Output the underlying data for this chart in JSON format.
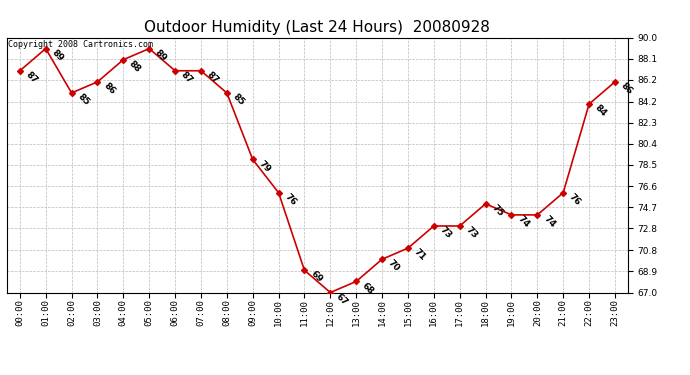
{
  "title": "Outdoor Humidity (Last 24 Hours)  20080928",
  "copyright": "Copyright 2008 Cartronics.com",
  "hours": [
    0,
    1,
    2,
    3,
    4,
    5,
    6,
    7,
    8,
    9,
    10,
    11,
    12,
    13,
    14,
    15,
    16,
    17,
    18,
    19,
    20,
    21,
    22,
    23
  ],
  "hour_labels": [
    "00:00",
    "01:00",
    "02:00",
    "03:00",
    "04:00",
    "05:00",
    "06:00",
    "07:00",
    "08:00",
    "09:00",
    "10:00",
    "11:00",
    "12:00",
    "13:00",
    "14:00",
    "15:00",
    "16:00",
    "17:00",
    "18:00",
    "19:00",
    "20:00",
    "21:00",
    "22:00",
    "23:00"
  ],
  "values": [
    87,
    89,
    85,
    86,
    88,
    89,
    87,
    87,
    85,
    79,
    76,
    69,
    67,
    68,
    70,
    71,
    73,
    73,
    75,
    74,
    74,
    76,
    84,
    86
  ],
  "ylim": [
    67.0,
    90.0
  ],
  "yticks": [
    67.0,
    68.9,
    70.8,
    72.8,
    74.7,
    76.6,
    78.5,
    80.4,
    82.3,
    84.2,
    86.2,
    88.1,
    90.0
  ],
  "line_color": "#cc0000",
  "marker": "D",
  "marker_size": 3,
  "bg_color": "#ffffff",
  "grid_color": "#bbbbbb",
  "title_fontsize": 11,
  "label_fontsize": 6.5,
  "annotation_fontsize": 6.5,
  "copyright_fontsize": 6
}
